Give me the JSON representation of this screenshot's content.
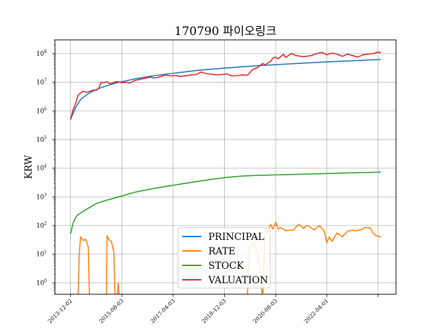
{
  "chart_data": {
    "type": "line",
    "title": "170790 파이오링크",
    "xlabel": "",
    "ylabel": "KRW",
    "yscale": "log",
    "ylim": [
      0.4,
      300000000
    ],
    "xlim": [
      "2013-06-01",
      "2024-07-01"
    ],
    "grid": true,
    "legend_position": "bottom-center",
    "x_ticks": [
      "2013-12-02",
      "2015-08-03",
      "2017-04-03",
      "2018-12-03",
      "2020-08-03",
      "2022-04-01",
      "2023-12-01"
    ],
    "x_tick_labels": [
      "2013-12-02",
      "2015-08-03",
      "2017-04-03",
      "2018-12-03",
      "2020-08-03",
      "2022-04-01",
      ""
    ],
    "y_ticks": [
      1,
      10,
      100,
      1000,
      10000,
      100000,
      1000000,
      10000000,
      100000000
    ],
    "y_tick_labels": [
      {
        "base": "10",
        "exp": "0"
      },
      {
        "base": "10",
        "exp": "1"
      },
      {
        "base": "10",
        "exp": "2"
      },
      {
        "base": "10",
        "exp": "3"
      },
      {
        "base": "10",
        "exp": "4"
      },
      {
        "base": "10",
        "exp": "5"
      },
      {
        "base": "10",
        "exp": "6"
      },
      {
        "base": "10",
        "exp": "7"
      },
      {
        "base": "10",
        "exp": "8"
      }
    ],
    "series": [
      {
        "name": "PRINCIPAL",
        "color": "#1f77b4",
        "x": [
          "2013-12-02",
          "2014-02-01",
          "2014-04-01",
          "2014-07-01",
          "2014-10-01",
          "2015-01-02",
          "2015-06-01",
          "2016-01-04",
          "2016-07-01",
          "2017-01-02",
          "2017-07-03",
          "2018-01-02",
          "2018-07-02",
          "2019-01-02",
          "2019-07-01",
          "2020-01-02",
          "2020-07-01",
          "2021-01-04",
          "2021-07-01",
          "2022-01-03",
          "2022-07-01",
          "2023-01-02",
          "2023-07-03",
          "2024-01-02"
        ],
        "y": [
          500000,
          1300000,
          2500000,
          4000000,
          5500000,
          7000000,
          9500000,
          13000000,
          16000000,
          19000000,
          22000000,
          25500000,
          28500000,
          31500000,
          34500000,
          37500000,
          40500000,
          43500000,
          46500000,
          49500000,
          52500000,
          55500000,
          58500000,
          62000000
        ]
      },
      {
        "name": "RATE",
        "color": "#ff7f0e",
        "x": [
          "2014-03-01",
          "2014-03-15",
          "2014-04-01",
          "2014-05-01",
          "2014-06-01",
          "2014-07-01",
          "2014-07-15",
          "2015-02-01",
          "2015-02-10",
          "2015-03-01",
          "2015-04-01",
          "2015-05-01",
          "2015-05-15",
          "2015-06-10",
          "2015-06-20",
          "2015-07-05",
          "2019-09-01",
          "2019-10-01",
          "2019-11-15",
          "2020-01-01",
          "2020-03-01",
          "2020-04-01",
          "2020-05-01",
          "2020-06-01",
          "2020-07-01",
          "2020-08-03",
          "2020-09-01",
          "2020-10-01",
          "2020-11-01",
          "2020-12-01",
          "2021-01-04",
          "2021-03-01",
          "2021-05-01",
          "2021-07-01",
          "2021-08-01",
          "2021-09-01",
          "2021-11-01",
          "2022-01-03",
          "2022-03-01",
          "2022-04-01",
          "2022-05-01",
          "2022-06-01",
          "2022-08-01",
          "2022-10-01",
          "2022-12-01",
          "2023-02-01",
          "2023-03-01",
          "2023-05-01",
          "2023-07-03",
          "2023-09-01",
          "2023-10-01",
          "2023-11-01",
          "2024-01-02"
        ],
        "y": [
          0.3,
          9,
          40,
          30,
          33,
          18,
          0.3,
          0.3,
          45,
          32,
          28,
          12,
          0.3,
          0.3,
          1,
          0.3,
          0.3,
          18,
          25,
          12,
          0.3,
          80,
          55,
          110,
          75,
          130,
          75,
          85,
          75,
          65,
          68,
          70,
          110,
          80,
          100,
          95,
          70,
          100,
          65,
          25,
          40,
          28,
          55,
          40,
          62,
          70,
          65,
          70,
          85,
          82,
          55,
          45,
          40
        ]
      },
      {
        "name": "STOCK",
        "color": "#2ca02c",
        "x": [
          "2013-12-02",
          "2014-01-02",
          "2014-02-01",
          "2014-03-01",
          "2014-05-01",
          "2014-07-01",
          "2014-10-01",
          "2015-01-02",
          "2015-07-01",
          "2016-01-04",
          "2016-07-01",
          "2017-01-02",
          "2017-07-03",
          "2018-01-02",
          "2018-07-02",
          "2019-01-02",
          "2019-07-01",
          "2020-01-02",
          "2020-07-01",
          "2021-01-04",
          "2021-07-01",
          "2022-01-03",
          "2022-07-01",
          "2023-01-02",
          "2023-07-03",
          "2024-01-02"
        ],
        "y": [
          50,
          120,
          190,
          240,
          310,
          400,
          580,
          720,
          1000,
          1450,
          1850,
          2300,
          2800,
          3400,
          4100,
          4800,
          5300,
          5600,
          5800,
          6000,
          6200,
          6400,
          6600,
          6900,
          7100,
          7300
        ]
      },
      {
        "name": "VALUATION",
        "color": "#d62728",
        "x": [
          "2013-12-02",
          "2014-01-02",
          "2014-02-01",
          "2014-03-01",
          "2014-04-01",
          "2014-05-01",
          "2014-06-01",
          "2014-07-01",
          "2014-08-01",
          "2014-09-01",
          "2014-10-01",
          "2014-11-01",
          "2014-12-01",
          "2015-01-02",
          "2015-02-02",
          "2015-03-02",
          "2015-04-01",
          "2015-05-01",
          "2015-06-01",
          "2015-07-01",
          "2015-08-03",
          "2015-09-01",
          "2015-10-01",
          "2015-11-02",
          "2015-12-01",
          "2016-01-04",
          "2016-03-02",
          "2016-05-02",
          "2016-07-01",
          "2016-09-01",
          "2016-11-01",
          "2017-01-02",
          "2017-03-02",
          "2017-05-01",
          "2017-07-03",
          "2017-09-01",
          "2017-11-01",
          "2018-01-02",
          "2018-03-02",
          "2018-05-02",
          "2018-07-02",
          "2018-09-03",
          "2018-11-01",
          "2019-01-02",
          "2019-03-04",
          "2019-05-02",
          "2019-07-01",
          "2019-09-02",
          "2019-11-01",
          "2020-01-02",
          "2020-03-02",
          "2020-04-01",
          "2020-05-04",
          "2020-06-01",
          "2020-07-01",
          "2020-08-03",
          "2020-09-01",
          "2020-10-05",
          "2020-11-02",
          "2020-12-01",
          "2021-02-01",
          "2021-04-01",
          "2021-06-01",
          "2021-07-01",
          "2021-08-02",
          "2021-10-01",
          "2021-12-01",
          "2022-02-03",
          "2022-04-01",
          "2022-06-02",
          "2022-08-01",
          "2022-10-04",
          "2022-12-01",
          "2023-02-01",
          "2023-04-03",
          "2023-06-01",
          "2023-08-01",
          "2023-10-04",
          "2023-12-01",
          "2024-01-02"
        ],
        "y": [
          500000,
          1100000,
          1800000,
          3500000,
          4200000,
          4800000,
          4500000,
          4600000,
          5000000,
          5300000,
          5200000,
          6000000,
          10000000,
          9500000,
          10500000,
          9200000,
          8900000,
          9800000,
          10500000,
          10200000,
          9500000,
          9700000,
          10000000,
          9400000,
          10200000,
          11500000,
          12500000,
          13500000,
          15000000,
          14000000,
          15500000,
          18000000,
          16500000,
          17000000,
          16000000,
          16800000,
          18000000,
          18500000,
          22500000,
          20000000,
          19000000,
          18000000,
          18500000,
          19500000,
          16500000,
          17000000,
          18000000,
          17500000,
          27000000,
          33000000,
          45000000,
          40000000,
          48000000,
          52000000,
          70000000,
          75000000,
          65000000,
          80000000,
          95000000,
          72000000,
          100000000,
          85000000,
          80000000,
          78000000,
          80000000,
          85000000,
          100000000,
          110000000,
          90000000,
          105000000,
          95000000,
          80000000,
          95000000,
          85000000,
          75000000,
          90000000,
          95000000,
          100000000,
          112000000,
          105000000
        ]
      }
    ]
  }
}
